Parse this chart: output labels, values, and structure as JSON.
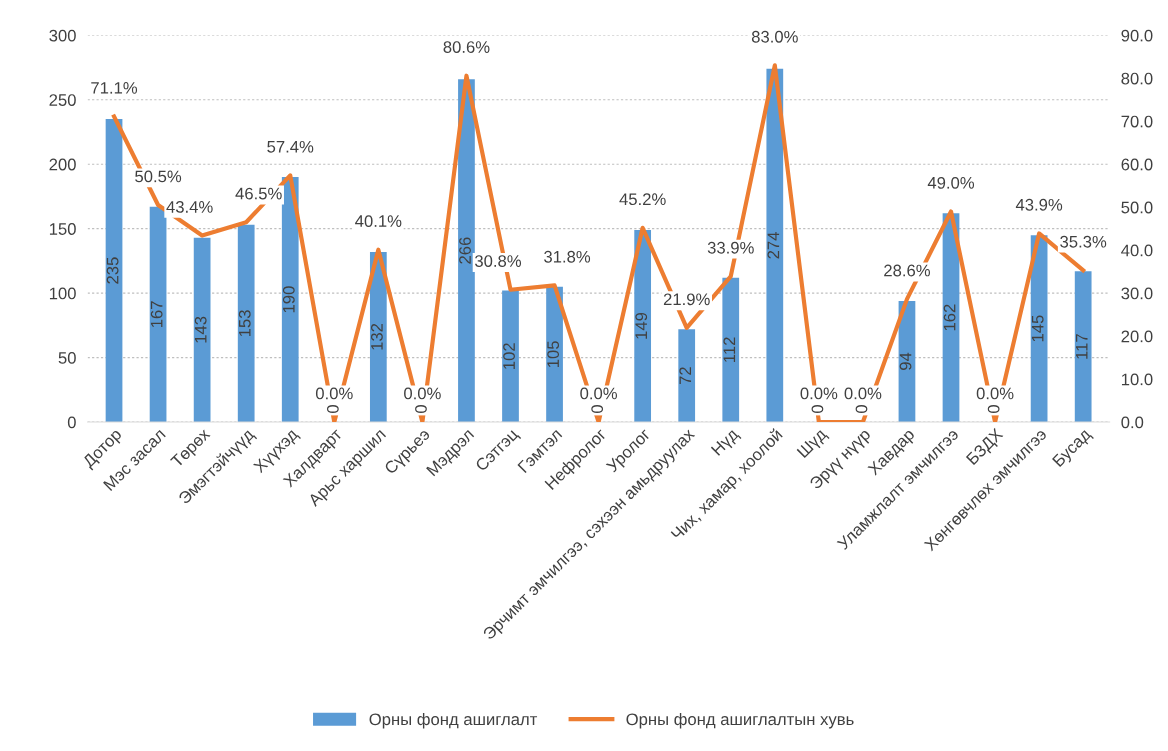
{
  "chart_data": {
    "type": "bar",
    "categories": [
      "Дотор",
      "Мэс засал",
      "Төрөх",
      "Эмэгтэйчүүд",
      "Хүүхэд",
      "Халдварт",
      "Арьс харшил",
      "Сүрьеэ",
      "Мэдрэл",
      "Сэтгэц",
      "Гэмтэл",
      "Нефролог",
      "Уролог",
      "Эрчимт эмчилгээ, сэхээн амьдруулах",
      "Нүд",
      "Чих, хамар, хоолой",
      "Шүд",
      "Эрүү нүүр",
      "Хавдар",
      "Уламжлалт эмчилгээ",
      "БЗДХ",
      "Хөнгөвчлөх эмчилгээ",
      "Бусад"
    ],
    "series": [
      {
        "name": "Орны фонд ашиглалт",
        "color": "#5b9bd5",
        "values": [
          235,
          167,
          143,
          153,
          190,
          0,
          132,
          0,
          266,
          102,
          105,
          0,
          149,
          72,
          112,
          274,
          0,
          0,
          94,
          162,
          0,
          145,
          117
        ],
        "value_labels": [
          "235",
          "167",
          "143",
          "153",
          "190",
          "0",
          "132",
          "0",
          "266",
          "102",
          "105",
          "0",
          "149",
          "72",
          "112",
          "274",
          "0",
          "0",
          "94",
          "162",
          "0",
          "145",
          "117"
        ]
      },
      {
        "name": "Орны фонд ашиглалтын хувь",
        "type": "line",
        "axis": "y2",
        "color": "#ed7d31",
        "values": [
          71.1,
          50.5,
          43.4,
          46.5,
          57.4,
          0.0,
          40.1,
          0.0,
          80.6,
          30.8,
          31.8,
          0.0,
          45.2,
          21.9,
          33.9,
          83.0,
          0.0,
          0.0,
          28.6,
          49.0,
          0.0,
          43.9,
          35.3
        ],
        "value_labels": [
          "71.1%",
          "50.5%",
          "43.4%",
          "46.5%",
          "57.4%",
          "0.0%",
          "40.1%",
          "0.0%",
          "80.6%",
          "30.8%",
          "31.8%",
          "0.0%",
          "45.2%",
          "21.9%",
          "33.9%",
          "83.0%",
          "0.0%",
          "0.0%",
          "28.6%",
          "49.0%",
          "0.0%",
          "43.9%",
          "35.3%"
        ]
      }
    ],
    "ylim": [
      0,
      300
    ],
    "yticks": [
      0,
      50,
      100,
      150,
      200,
      250,
      300
    ],
    "y2lim": [
      0,
      90
    ],
    "y2ticks": [
      {
        "value": 0,
        "label": "0.0"
      },
      {
        "value": 10,
        "label": "10.0"
      },
      {
        "value": 20,
        "label": "20.0"
      },
      {
        "value": 30,
        "label": "30.0"
      },
      {
        "value": 40,
        "label": "40.0"
      },
      {
        "value": 50,
        "label": "50.0"
      },
      {
        "value": 60,
        "label": "60.0"
      },
      {
        "value": 70,
        "label": "70.0"
      },
      {
        "value": 80,
        "label": "80.0"
      },
      {
        "value": 90,
        "label": "90.0"
      }
    ],
    "grid": "y",
    "legend": "bottom",
    "marker": "none",
    "line_style": "solid"
  }
}
